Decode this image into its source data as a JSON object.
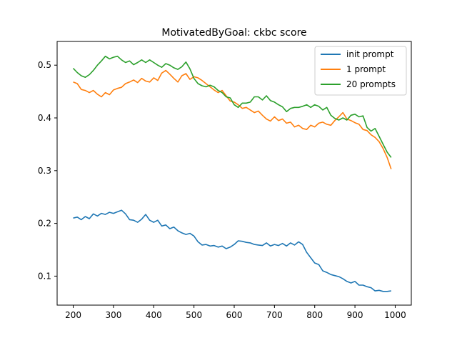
{
  "chart_data": {
    "type": "line",
    "title": "MotivatedByGoal: ckbc score",
    "xlabel": "",
    "ylabel": "",
    "xlim": [
      160,
      1040
    ],
    "ylim": [
      0.045,
      0.545
    ],
    "xticks": [
      200,
      300,
      400,
      500,
      600,
      700,
      800,
      900,
      1000
    ],
    "yticks": [
      0.1,
      0.2,
      0.3,
      0.4,
      0.5
    ],
    "ytick_labels": [
      "0.1",
      "0.2",
      "0.3",
      "0.4",
      "0.5"
    ],
    "grid": false,
    "legend_position": "top-right",
    "series": [
      {
        "name": "init prompt",
        "color": "#1f77b4",
        "x": [
          200,
          210,
          220,
          230,
          240,
          250,
          260,
          270,
          280,
          290,
          300,
          310,
          320,
          330,
          340,
          350,
          360,
          370,
          380,
          390,
          400,
          410,
          420,
          430,
          440,
          450,
          460,
          470,
          480,
          490,
          500,
          510,
          520,
          530,
          540,
          550,
          560,
          570,
          580,
          590,
          600,
          610,
          620,
          630,
          640,
          650,
          660,
          670,
          680,
          690,
          700,
          710,
          720,
          730,
          740,
          750,
          760,
          770,
          780,
          790,
          800,
          810,
          820,
          830,
          840,
          850,
          860,
          870,
          880,
          890,
          900,
          910,
          920,
          930,
          940,
          950,
          960,
          970,
          980,
          990
        ],
        "values": [
          0.21,
          0.212,
          0.207,
          0.213,
          0.209,
          0.218,
          0.214,
          0.219,
          0.217,
          0.221,
          0.219,
          0.222,
          0.225,
          0.218,
          0.207,
          0.206,
          0.202,
          0.208,
          0.217,
          0.206,
          0.202,
          0.206,
          0.195,
          0.197,
          0.19,
          0.193,
          0.186,
          0.182,
          0.179,
          0.181,
          0.176,
          0.165,
          0.159,
          0.16,
          0.157,
          0.158,
          0.155,
          0.157,
          0.152,
          0.155,
          0.16,
          0.167,
          0.166,
          0.164,
          0.163,
          0.16,
          0.159,
          0.158,
          0.163,
          0.157,
          0.16,
          0.158,
          0.162,
          0.157,
          0.163,
          0.159,
          0.165,
          0.16,
          0.145,
          0.135,
          0.125,
          0.122,
          0.11,
          0.107,
          0.103,
          0.101,
          0.099,
          0.095,
          0.09,
          0.087,
          0.09,
          0.083,
          0.083,
          0.08,
          0.078,
          0.072,
          0.073,
          0.071,
          0.071,
          0.072
        ]
      },
      {
        "name": "1 prompt",
        "color": "#ff7f0e",
        "x": [
          200,
          210,
          220,
          230,
          240,
          250,
          260,
          270,
          280,
          290,
          300,
          310,
          320,
          330,
          340,
          350,
          360,
          370,
          380,
          390,
          400,
          410,
          420,
          430,
          440,
          450,
          460,
          470,
          480,
          490,
          500,
          510,
          520,
          530,
          540,
          550,
          560,
          570,
          580,
          590,
          600,
          610,
          620,
          630,
          640,
          650,
          660,
          670,
          680,
          690,
          700,
          710,
          720,
          730,
          740,
          750,
          760,
          770,
          780,
          790,
          800,
          810,
          820,
          830,
          840,
          850,
          860,
          870,
          880,
          890,
          900,
          910,
          920,
          930,
          940,
          950,
          960,
          970,
          980,
          990
        ],
        "values": [
          0.468,
          0.465,
          0.454,
          0.452,
          0.448,
          0.452,
          0.445,
          0.44,
          0.448,
          0.444,
          0.453,
          0.456,
          0.458,
          0.465,
          0.468,
          0.472,
          0.467,
          0.475,
          0.47,
          0.468,
          0.476,
          0.471,
          0.485,
          0.49,
          0.483,
          0.475,
          0.468,
          0.48,
          0.484,
          0.473,
          0.478,
          0.476,
          0.471,
          0.465,
          0.459,
          0.453,
          0.448,
          0.452,
          0.442,
          0.432,
          0.43,
          0.425,
          0.418,
          0.42,
          0.415,
          0.41,
          0.413,
          0.405,
          0.398,
          0.394,
          0.402,
          0.395,
          0.398,
          0.39,
          0.392,
          0.383,
          0.386,
          0.38,
          0.378,
          0.386,
          0.383,
          0.39,
          0.392,
          0.388,
          0.386,
          0.395,
          0.402,
          0.41,
          0.398,
          0.395,
          0.391,
          0.388,
          0.378,
          0.376,
          0.368,
          0.363,
          0.355,
          0.342,
          0.325,
          0.303
        ]
      },
      {
        "name": "20 prompts",
        "color": "#2ca02c",
        "x": [
          200,
          210,
          220,
          230,
          240,
          250,
          260,
          270,
          280,
          290,
          300,
          310,
          320,
          330,
          340,
          350,
          360,
          370,
          380,
          390,
          400,
          410,
          420,
          430,
          440,
          450,
          460,
          470,
          480,
          490,
          500,
          510,
          520,
          530,
          540,
          550,
          560,
          570,
          580,
          590,
          600,
          610,
          620,
          630,
          640,
          650,
          660,
          670,
          680,
          690,
          700,
          710,
          720,
          730,
          740,
          750,
          760,
          770,
          780,
          790,
          800,
          810,
          820,
          830,
          840,
          850,
          860,
          870,
          880,
          890,
          900,
          910,
          920,
          930,
          940,
          950,
          960,
          970,
          980,
          990
        ],
        "values": [
          0.494,
          0.486,
          0.48,
          0.477,
          0.482,
          0.49,
          0.5,
          0.508,
          0.517,
          0.512,
          0.515,
          0.517,
          0.51,
          0.505,
          0.508,
          0.501,
          0.505,
          0.51,
          0.505,
          0.51,
          0.505,
          0.5,
          0.496,
          0.503,
          0.5,
          0.495,
          0.492,
          0.497,
          0.506,
          0.493,
          0.475,
          0.465,
          0.461,
          0.459,
          0.462,
          0.459,
          0.452,
          0.448,
          0.44,
          0.438,
          0.425,
          0.42,
          0.428,
          0.428,
          0.43,
          0.44,
          0.44,
          0.434,
          0.442,
          0.433,
          0.43,
          0.425,
          0.421,
          0.412,
          0.418,
          0.42,
          0.42,
          0.422,
          0.425,
          0.42,
          0.425,
          0.422,
          0.415,
          0.42,
          0.405,
          0.399,
          0.396,
          0.4,
          0.396,
          0.405,
          0.407,
          0.402,
          0.404,
          0.382,
          0.375,
          0.38,
          0.365,
          0.35,
          0.335,
          0.325
        ]
      }
    ]
  }
}
